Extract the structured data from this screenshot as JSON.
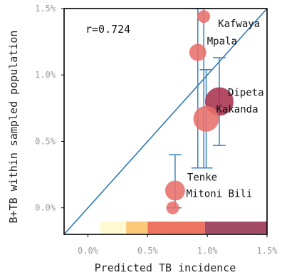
{
  "chart_data": {
    "type": "scatter",
    "title": "",
    "xlabel": "Predicted TB incidence",
    "ylabel": "B+TB within sampled population",
    "xlim": [
      -0.2,
      1.5
    ],
    "ylim": [
      -0.2,
      1.5
    ],
    "x_ticks": [
      0.0,
      0.5,
      1.0,
      1.5
    ],
    "x_tick_labels": [
      "0.0%",
      "0.5%",
      "1.0%",
      "1.5%"
    ],
    "y_ticks": [
      0.0,
      0.5,
      1.0,
      1.5
    ],
    "y_tick_labels": [
      "0.0%",
      "0.5%",
      "1.0%",
      "1.5%"
    ],
    "annotation": "r=0.724",
    "identity_line": true,
    "grid": false,
    "points": [
      {
        "label": "Kafwaya",
        "x": 0.97,
        "y": 1.44,
        "size": 9,
        "color": "#e8706a",
        "yerr": [
          0.3,
          1.5
        ]
      },
      {
        "label": "Mpala",
        "x": 0.92,
        "y": 1.17,
        "size": 12,
        "color": "#e8706a",
        "yerr": [
          0.3,
          1.5
        ]
      },
      {
        "label": "Dipeta",
        "x": 1.1,
        "y": 0.8,
        "size": 20,
        "color": "#a8324f",
        "yerr": [
          0.47,
          1.13
        ]
      },
      {
        "label": "Kakanda",
        "x": 0.99,
        "y": 0.67,
        "size": 18,
        "color": "#e8706a",
        "yerr": [
          0.3,
          1.04
        ]
      },
      {
        "label": "Tenke",
        "x": 0.73,
        "y": 0.13,
        "size": 14,
        "color": "#e8706a",
        "yerr": [
          0.0,
          0.4
        ]
      },
      {
        "label": "Mitoni Bili",
        "x": 0.71,
        "y": 0.0,
        "size": 9,
        "color": "#e8706a",
        "yerr": [
          0.0,
          0.0
        ]
      }
    ],
    "colorbar": {
      "bounds": [
        0.1,
        0.32,
        0.5,
        0.98,
        1.5
      ],
      "colors": [
        "#fffad2",
        "#fbc97a",
        "#ee7462",
        "#a24a66"
      ]
    },
    "colors": {
      "line": "#2d78b4",
      "errorbar": "#3a82bf",
      "axis": "#000000"
    }
  }
}
